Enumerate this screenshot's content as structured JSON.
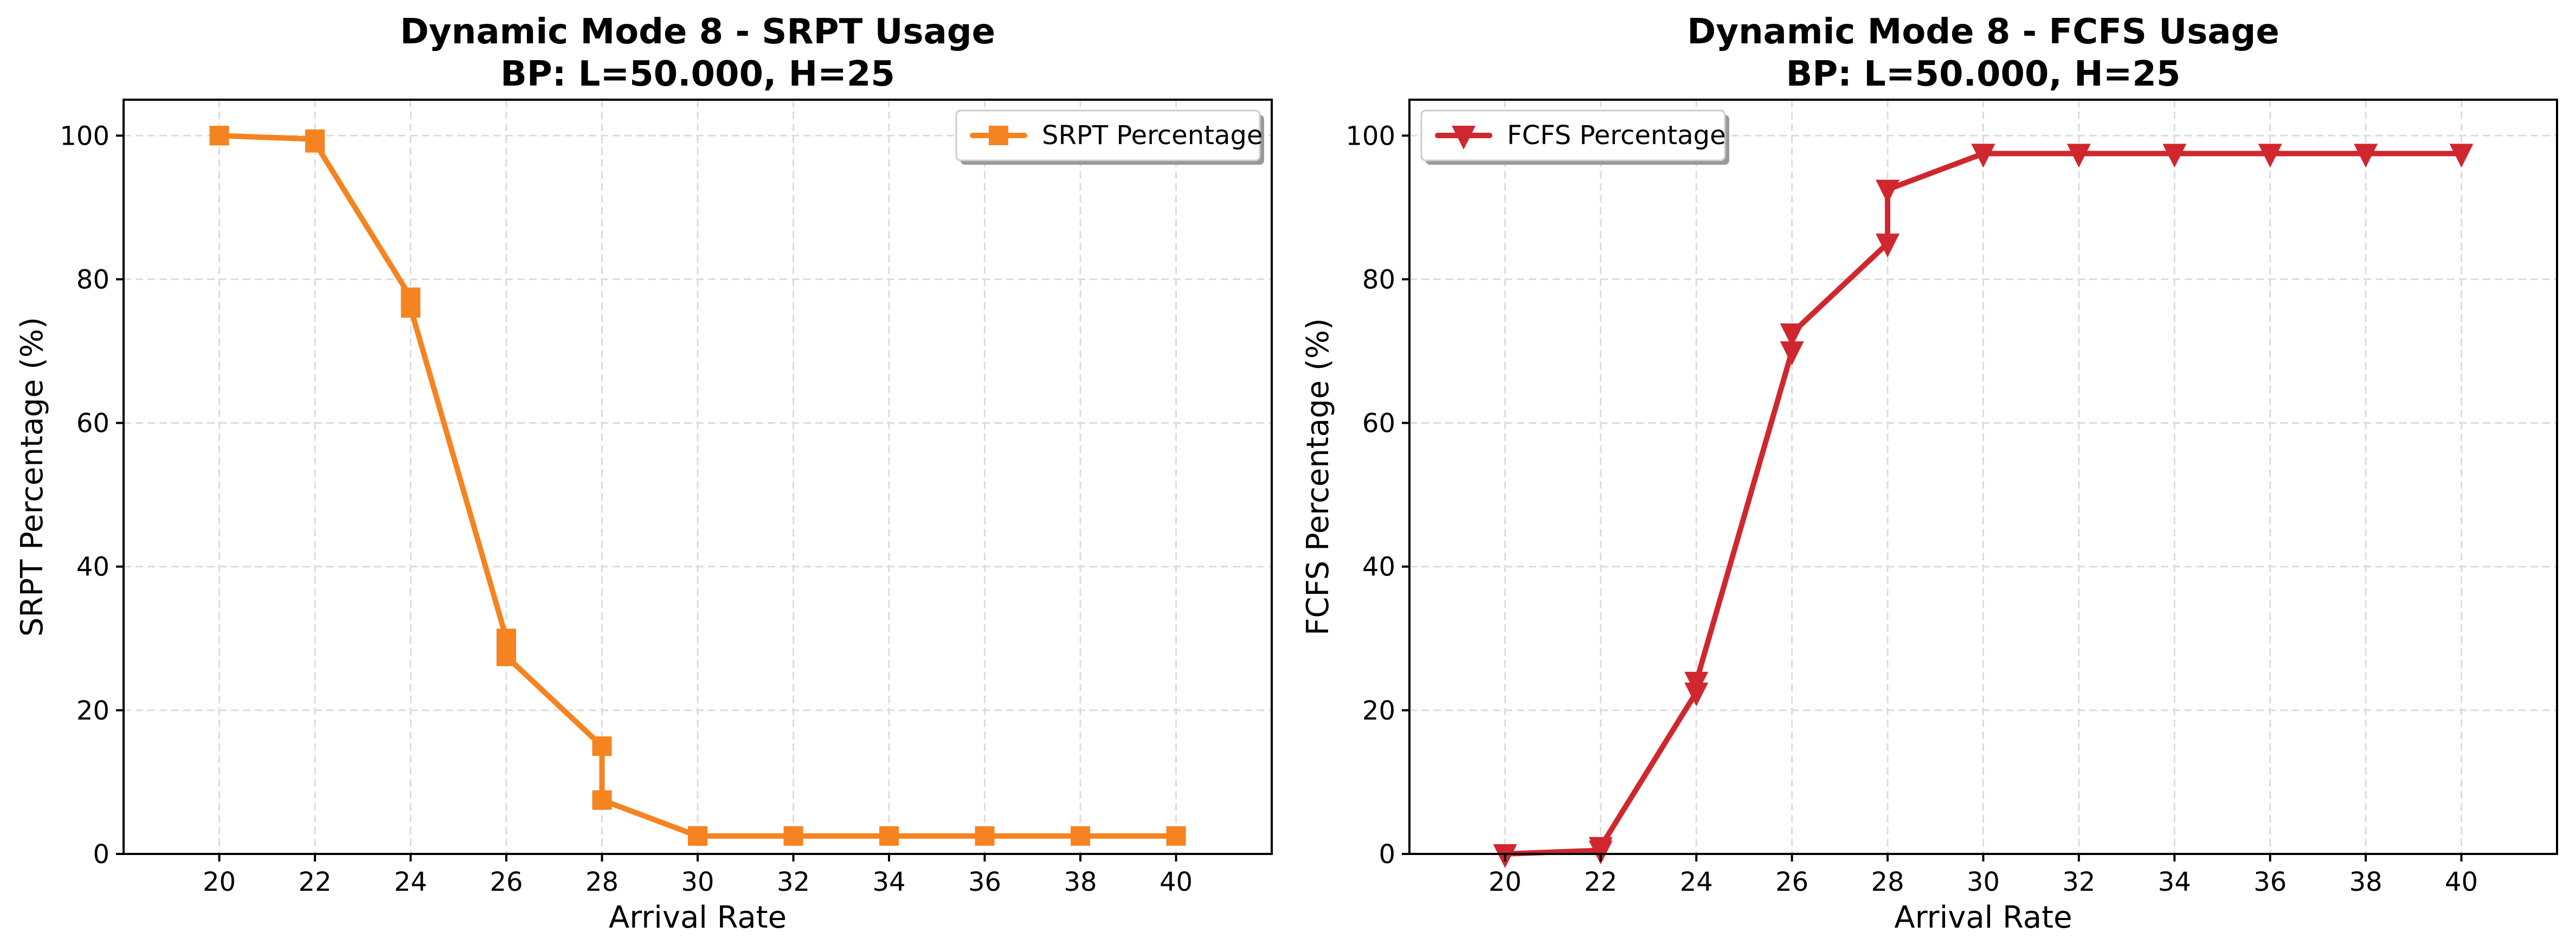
{
  "chart_data": [
    {
      "type": "line",
      "title": "Dynamic Mode 8 - SRPT Usage\nBP: L=50.000, H=25",
      "xlabel": "Arrival Rate",
      "ylabel": "SRPT Percentage (%)",
      "xlim": [
        18,
        42
      ],
      "ylim": [
        0,
        105
      ],
      "xticks": [
        20,
        22,
        24,
        26,
        28,
        30,
        32,
        34,
        36,
        38,
        40
      ],
      "yticks": [
        0,
        20,
        40,
        60,
        80,
        100
      ],
      "grid": true,
      "legend_position": "upper right",
      "series": [
        {
          "name": "SRPT Percentage",
          "color": "#f5831f",
          "marker": "square",
          "x": [
            20,
            20,
            22,
            22,
            24,
            24,
            26,
            26,
            28,
            28,
            30,
            30,
            32,
            34,
            36,
            38,
            40
          ],
          "y": [
            100,
            100,
            99.5,
            99,
            77.5,
            76,
            30,
            27.5,
            15,
            7.5,
            2.5,
            2.5,
            2.5,
            2.5,
            2.5,
            2.5,
            2.5
          ]
        }
      ]
    },
    {
      "type": "line",
      "title": "Dynamic Mode 8 - FCFS Usage\nBP: L=50.000, H=25",
      "xlabel": "Arrival Rate",
      "ylabel": "FCFS Percentage (%)",
      "xlim": [
        18,
        42
      ],
      "ylim": [
        0,
        105
      ],
      "xticks": [
        20,
        22,
        24,
        26,
        28,
        30,
        32,
        34,
        36,
        38,
        40
      ],
      "yticks": [
        0,
        20,
        40,
        60,
        80,
        100
      ],
      "grid": true,
      "legend_position": "upper left",
      "series": [
        {
          "name": "FCFS Percentage",
          "color": "#d0272e",
          "marker": "triangle-down",
          "x": [
            20,
            20,
            22,
            22,
            24,
            24,
            26,
            26,
            28,
            28,
            30,
            30,
            32,
            34,
            36,
            38,
            40
          ],
          "y": [
            0,
            0,
            0.5,
            1,
            22.5,
            24,
            70,
            72.5,
            85,
            92.5,
            97.5,
            97.5,
            97.5,
            97.5,
            97.5,
            97.5,
            97.5
          ]
        }
      ]
    }
  ]
}
